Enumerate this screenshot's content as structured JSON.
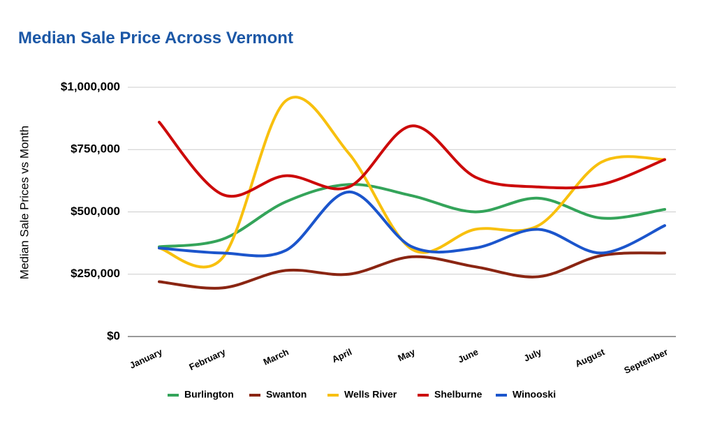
{
  "chart_data": {
    "type": "line",
    "title": "Median Sale Price Across Vermont",
    "y_label": "Median Sale Prices vs Month",
    "categories": [
      "January",
      "February",
      "March",
      "April",
      "May",
      "June",
      "July",
      "August",
      "September"
    ],
    "series": [
      {
        "name": "Burlington",
        "color": "#34a45a",
        "values": [
          360000,
          390000,
          540000,
          610000,
          565000,
          500000,
          555000,
          475000,
          510000
        ]
      },
      {
        "name": "Swanton",
        "color": "#8a2512",
        "values": [
          220000,
          195000,
          265000,
          250000,
          320000,
          280000,
          240000,
          325000,
          335000
        ]
      },
      {
        "name": "Wells River",
        "color": "#f8c00e",
        "values": [
          355000,
          315000,
          945000,
          735000,
          350000,
          430000,
          445000,
          700000,
          710000
        ]
      },
      {
        "name": "Shelburne",
        "color": "#cc0a0a",
        "values": [
          860000,
          570000,
          645000,
          600000,
          845000,
          640000,
          600000,
          610000,
          710000
        ]
      },
      {
        "name": "Winooski",
        "color": "#1b55cc",
        "values": [
          355000,
          335000,
          345000,
          580000,
          360000,
          355000,
          430000,
          335000,
          445000
        ]
      }
    ],
    "ylim": [
      0,
      1000000
    ],
    "yticks": [
      {
        "value": 0,
        "label": "$0"
      },
      {
        "value": 250000,
        "label": "$250,000"
      },
      {
        "value": 500000,
        "label": "$500,000"
      },
      {
        "value": 750000,
        "label": "$750,000"
      },
      {
        "value": 1000000,
        "label": "$1,000,000"
      }
    ],
    "grid": true,
    "legend": "bottom"
  }
}
